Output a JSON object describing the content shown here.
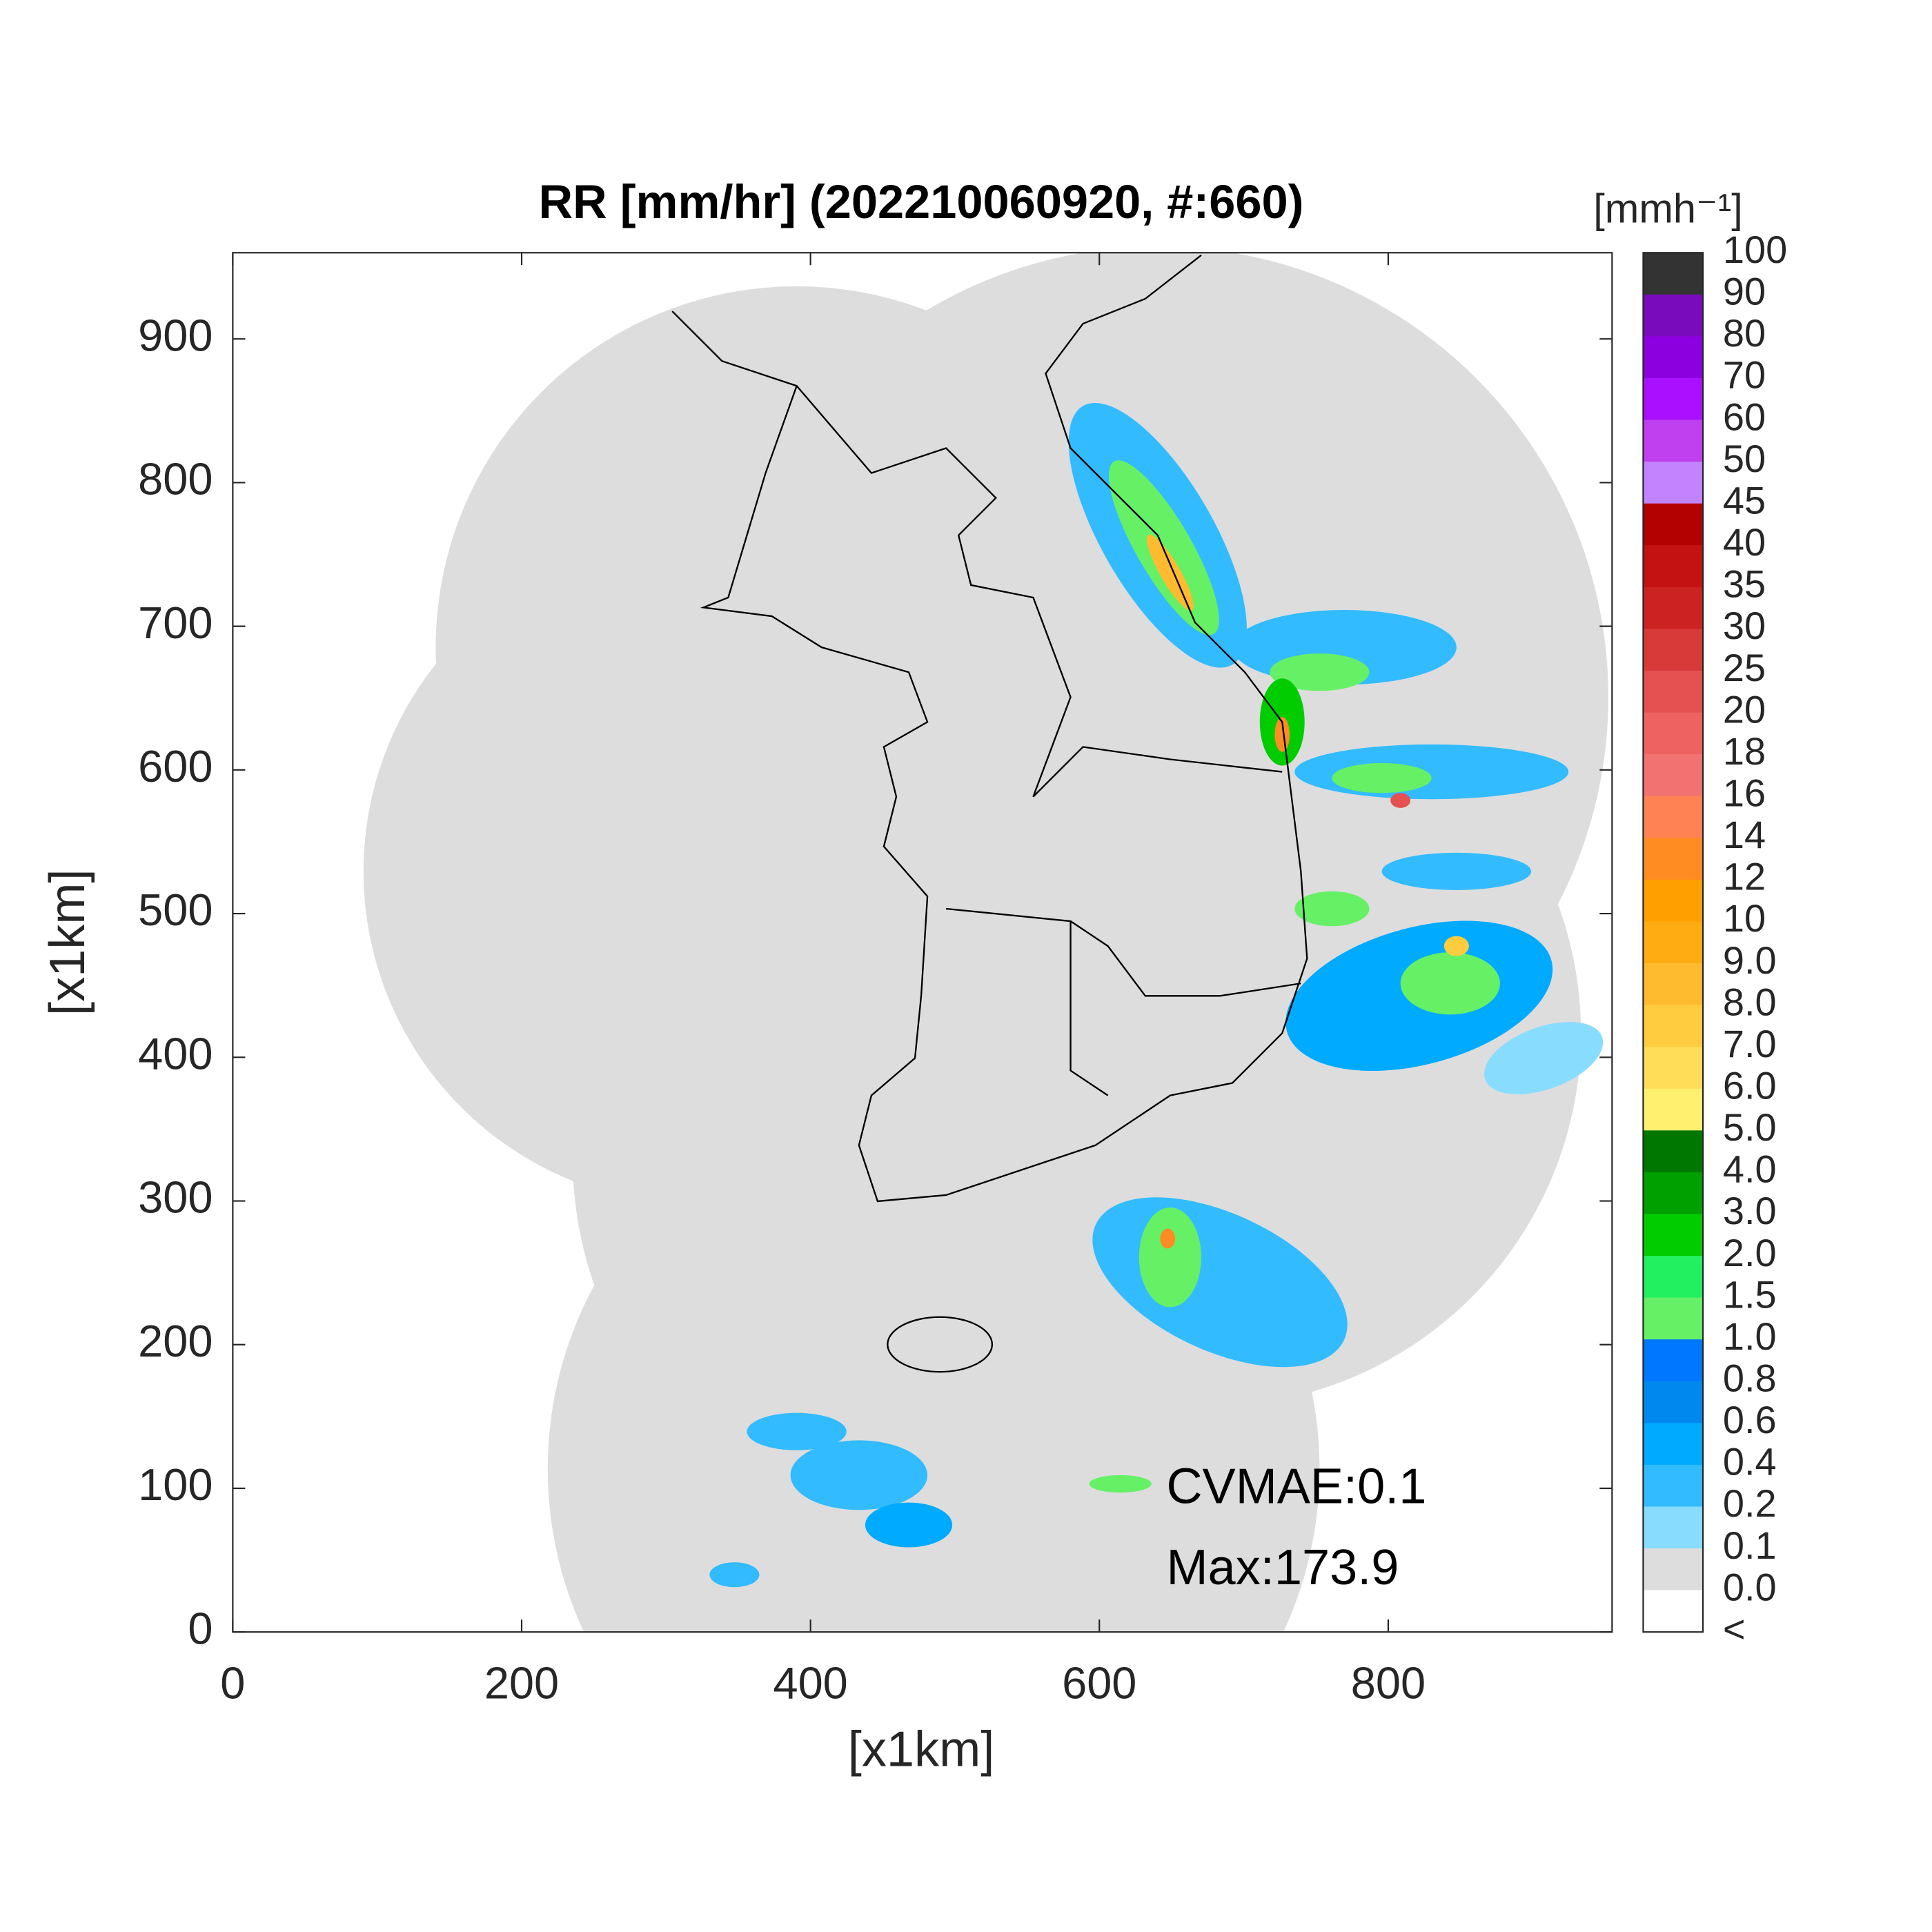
{
  "chart_data": {
    "type": "map",
    "title": "RR [mm/hr] (202210060920, #:660)",
    "x_label": "[x1km]",
    "y_label": "[x1km]",
    "xlim": [
      0,
      955
    ],
    "ylim": [
      0,
      960
    ],
    "xticks": [
      0,
      200,
      400,
      600,
      800
    ],
    "yticks": [
      0,
      100,
      200,
      300,
      400,
      500,
      600,
      700,
      800,
      900
    ],
    "annotations": [
      "CVMAE:0.1",
      "Max:173.9"
    ],
    "colorbar": {
      "unit": "[mmh⁻¹]",
      "labels": [
        "100",
        "90",
        "80",
        "70",
        "60",
        "50",
        "45",
        "40",
        "35",
        "30",
        "25",
        "20",
        "18",
        "16",
        "14",
        "12",
        "10",
        "9.0",
        "8.0",
        "7.0",
        "6.0",
        "5.0",
        "4.0",
        "3.0",
        "2.0",
        "1.5",
        "1.0",
        "0.8",
        "0.6",
        "0.4",
        "0.2",
        "0.1",
        "0.0",
        "<"
      ],
      "colors": [
        "#333333",
        "#7a0bbd",
        "#8c00e0",
        "#aa10ff",
        "#c040f0",
        "#c383ff",
        "#b30000",
        "#c41212",
        "#cc2222",
        "#d83a3a",
        "#e55050",
        "#ee6262",
        "#f27272",
        "#ff8255",
        "#ff8c22",
        "#ffa000",
        "#ffab12",
        "#ffbb30",
        "#ffcc40",
        "#ffdd58",
        "#fff070",
        "#007700",
        "#00a000",
        "#00cc00",
        "#22f060",
        "#66f066",
        "#0077ff",
        "#0088ee",
        "#00aaff",
        "#33bbff",
        "#88ddff",
        "#dddddd",
        "#ffffff"
      ]
    }
  }
}
